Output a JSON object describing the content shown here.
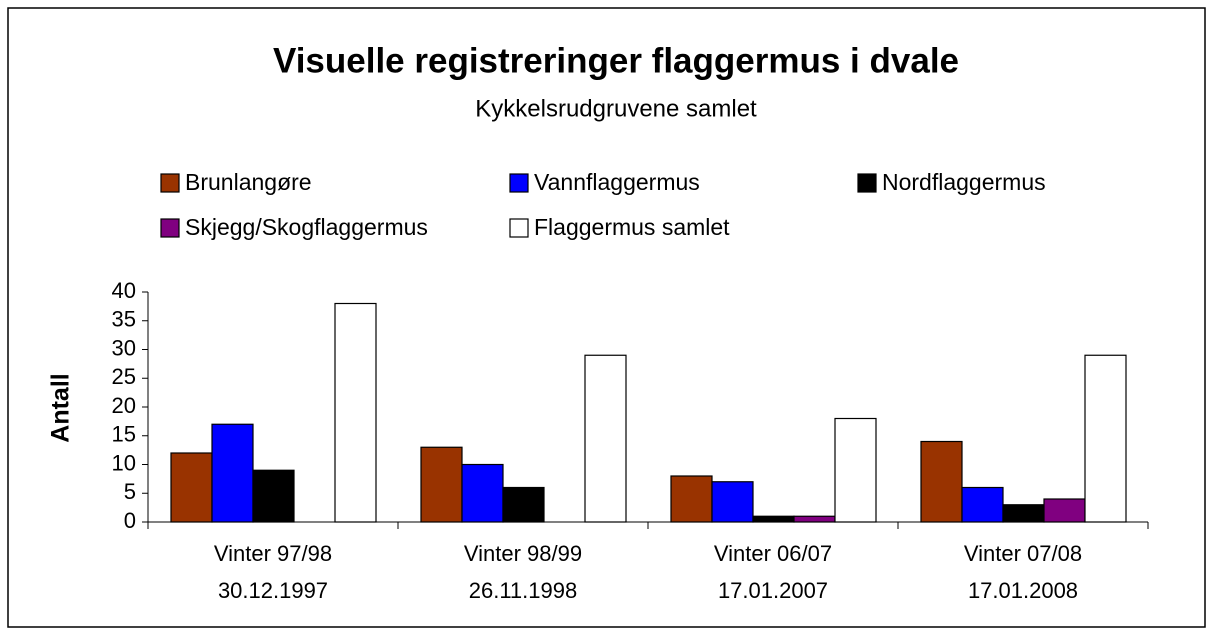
{
  "chart_data": {
    "type": "bar",
    "title": "Visuelle registreringer flaggermus i dvale",
    "subtitle": "Kykkelsrudgruvene samlet",
    "ylabel": "Antall",
    "categories": [
      [
        "Vinter 97/98",
        "30.12.1997"
      ],
      [
        "Vinter 98/99",
        "26.11.1998"
      ],
      [
        "Vinter 06/07",
        "17.01.2007"
      ],
      [
        "Vinter 07/08",
        "17.01.2008"
      ]
    ],
    "series": [
      {
        "name": "Brunlangøre",
        "color": "#993300",
        "values": [
          12,
          13,
          8,
          14
        ]
      },
      {
        "name": "Vannflaggermus",
        "color": "#0000ff",
        "values": [
          17,
          10,
          7,
          6
        ]
      },
      {
        "name": "Nordflaggermus",
        "color": "#000000",
        "values": [
          9,
          6,
          1,
          3
        ]
      },
      {
        "name": "Skjegg/Skogflaggermus",
        "color": "#800080",
        "values": [
          null,
          null,
          1,
          4
        ]
      },
      {
        "name": "Flaggermus samlet",
        "color": "#ffffff",
        "values": [
          38,
          29,
          18,
          29
        ]
      }
    ],
    "ylim": [
      0,
      40
    ],
    "yticks": [
      0,
      5,
      10,
      15,
      20,
      25,
      30,
      35,
      40
    ],
    "grid": false,
    "legend": "top"
  }
}
